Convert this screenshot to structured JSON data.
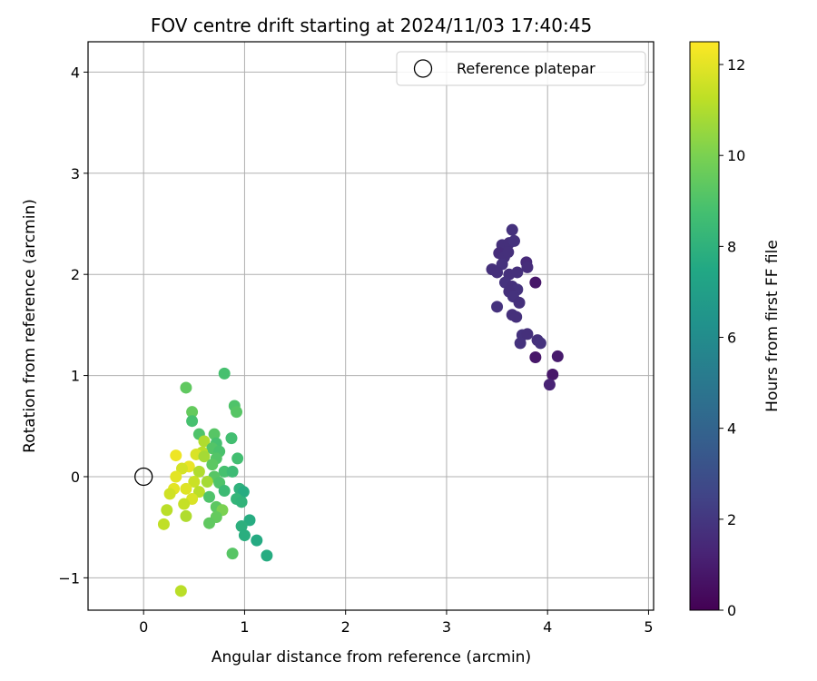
{
  "chart_data": {
    "type": "scatter",
    "title": "FOV centre drift starting at 2024/11/03 17:40:45",
    "xlabel": "Angular distance from reference (arcmin)",
    "ylabel": "Rotation from reference (arcmin)",
    "xlim": [
      -0.55,
      5.05
    ],
    "ylim": [
      -1.32,
      4.3
    ],
    "xticks": [
      0,
      1,
      2,
      3,
      4,
      5
    ],
    "xtick_labels": [
      "0",
      "1",
      "2",
      "3",
      "4",
      "5"
    ],
    "yticks": [
      -1,
      0,
      1,
      2,
      3,
      4
    ],
    "ytick_labels": [
      "−1",
      "0",
      "1",
      "2",
      "3",
      "4"
    ],
    "grid": true,
    "legend": {
      "placement": "top-right",
      "entries": [
        "Reference platepar"
      ]
    },
    "reference_point": {
      "x": 0,
      "y": 0,
      "marker": "open-circle"
    },
    "colorbar": {
      "label": "Hours from first FF file",
      "range": [
        0,
        12.5
      ],
      "ticks": [
        0,
        2,
        4,
        6,
        8,
        10,
        12
      ],
      "tick_labels": [
        "0",
        "2",
        "4",
        "6",
        "8",
        "10",
        "12"
      ],
      "colormap": "viridis"
    },
    "points": [
      {
        "x": 3.65,
        "y": 2.44,
        "h": 1.8
      },
      {
        "x": 3.55,
        "y": 2.29,
        "h": 1.7
      },
      {
        "x": 3.62,
        "y": 2.31,
        "h": 1.7
      },
      {
        "x": 3.67,
        "y": 2.33,
        "h": 1.8
      },
      {
        "x": 3.52,
        "y": 2.21,
        "h": 1.6
      },
      {
        "x": 3.57,
        "y": 2.17,
        "h": 1.7
      },
      {
        "x": 3.61,
        "y": 2.22,
        "h": 1.7
      },
      {
        "x": 3.55,
        "y": 2.1,
        "h": 1.8
      },
      {
        "x": 3.79,
        "y": 2.12,
        "h": 1.5
      },
      {
        "x": 3.8,
        "y": 2.07,
        "h": 1.6
      },
      {
        "x": 3.45,
        "y": 2.05,
        "h": 1.7
      },
      {
        "x": 3.5,
        "y": 2.02,
        "h": 1.7
      },
      {
        "x": 3.62,
        "y": 2.0,
        "h": 1.7
      },
      {
        "x": 3.7,
        "y": 2.02,
        "h": 1.7
      },
      {
        "x": 3.58,
        "y": 1.92,
        "h": 1.8
      },
      {
        "x": 3.65,
        "y": 1.88,
        "h": 1.7
      },
      {
        "x": 3.7,
        "y": 1.85,
        "h": 1.8
      },
      {
        "x": 3.62,
        "y": 1.83,
        "h": 1.7
      },
      {
        "x": 3.66,
        "y": 1.78,
        "h": 1.8
      },
      {
        "x": 3.72,
        "y": 1.72,
        "h": 1.7
      },
      {
        "x": 3.88,
        "y": 1.92,
        "h": 0.8
      },
      {
        "x": 3.5,
        "y": 1.68,
        "h": 1.8
      },
      {
        "x": 3.65,
        "y": 1.6,
        "h": 1.7
      },
      {
        "x": 3.69,
        "y": 1.58,
        "h": 1.7
      },
      {
        "x": 3.75,
        "y": 1.4,
        "h": 1.8
      },
      {
        "x": 3.8,
        "y": 1.41,
        "h": 1.7
      },
      {
        "x": 3.73,
        "y": 1.32,
        "h": 1.8
      },
      {
        "x": 3.9,
        "y": 1.35,
        "h": 1.7
      },
      {
        "x": 3.93,
        "y": 1.32,
        "h": 1.8
      },
      {
        "x": 3.88,
        "y": 1.18,
        "h": 0.8
      },
      {
        "x": 4.1,
        "y": 1.19,
        "h": 0.9
      },
      {
        "x": 4.05,
        "y": 1.01,
        "h": 0.8
      },
      {
        "x": 4.02,
        "y": 0.91,
        "h": 1.2
      },
      {
        "x": 0.8,
        "y": 1.02,
        "h": 8.8
      },
      {
        "x": 0.42,
        "y": 0.88,
        "h": 9.4
      },
      {
        "x": 0.9,
        "y": 0.7,
        "h": 9.0
      },
      {
        "x": 0.92,
        "y": 0.64,
        "h": 9.2
      },
      {
        "x": 0.48,
        "y": 0.64,
        "h": 9.5
      },
      {
        "x": 0.48,
        "y": 0.55,
        "h": 8.8
      },
      {
        "x": 0.55,
        "y": 0.42,
        "h": 9.0
      },
      {
        "x": 0.7,
        "y": 0.42,
        "h": 9.2
      },
      {
        "x": 0.6,
        "y": 0.35,
        "h": 11.0
      },
      {
        "x": 0.72,
        "y": 0.33,
        "h": 8.8
      },
      {
        "x": 0.87,
        "y": 0.38,
        "h": 8.7
      },
      {
        "x": 0.68,
        "y": 0.28,
        "h": 9.1
      },
      {
        "x": 0.75,
        "y": 0.25,
        "h": 8.9
      },
      {
        "x": 0.58,
        "y": 0.24,
        "h": 11.2
      },
      {
        "x": 0.52,
        "y": 0.22,
        "h": 11.8
      },
      {
        "x": 0.32,
        "y": 0.21,
        "h": 12.2
      },
      {
        "x": 0.6,
        "y": 0.2,
        "h": 10.8
      },
      {
        "x": 0.72,
        "y": 0.18,
        "h": 9.1
      },
      {
        "x": 0.93,
        "y": 0.18,
        "h": 8.7
      },
      {
        "x": 0.68,
        "y": 0.12,
        "h": 9.3
      },
      {
        "x": 0.45,
        "y": 0.1,
        "h": 12.1
      },
      {
        "x": 0.38,
        "y": 0.08,
        "h": 11.7
      },
      {
        "x": 0.55,
        "y": 0.05,
        "h": 11.0
      },
      {
        "x": 0.8,
        "y": 0.05,
        "h": 8.8
      },
      {
        "x": 0.88,
        "y": 0.05,
        "h": 8.5
      },
      {
        "x": 0.7,
        "y": 0.0,
        "h": 9.2
      },
      {
        "x": 0.32,
        "y": 0.0,
        "h": 12.0
      },
      {
        "x": 0.5,
        "y": -0.05,
        "h": 11.5
      },
      {
        "x": 0.63,
        "y": -0.05,
        "h": 10.8
      },
      {
        "x": 0.75,
        "y": -0.06,
        "h": 9.0
      },
      {
        "x": 0.42,
        "y": -0.12,
        "h": 11.9
      },
      {
        "x": 0.3,
        "y": -0.12,
        "h": 12.0
      },
      {
        "x": 0.26,
        "y": -0.17,
        "h": 11.6
      },
      {
        "x": 0.55,
        "y": -0.15,
        "h": 11.2
      },
      {
        "x": 0.8,
        "y": -0.14,
        "h": 8.5
      },
      {
        "x": 0.95,
        "y": -0.12,
        "h": 8.0
      },
      {
        "x": 0.99,
        "y": -0.15,
        "h": 7.7
      },
      {
        "x": 0.65,
        "y": -0.2,
        "h": 9.0
      },
      {
        "x": 0.48,
        "y": -0.22,
        "h": 11.8
      },
      {
        "x": 0.4,
        "y": -0.27,
        "h": 11.4
      },
      {
        "x": 0.92,
        "y": -0.22,
        "h": 8.2
      },
      {
        "x": 0.97,
        "y": -0.25,
        "h": 8.1
      },
      {
        "x": 0.72,
        "y": -0.3,
        "h": 9.3
      },
      {
        "x": 0.23,
        "y": -0.33,
        "h": 11.2
      },
      {
        "x": 0.78,
        "y": -0.33,
        "h": 10.0
      },
      {
        "x": 0.42,
        "y": -0.39,
        "h": 11.0
      },
      {
        "x": 0.72,
        "y": -0.4,
        "h": 9.5
      },
      {
        "x": 1.05,
        "y": -0.43,
        "h": 7.7
      },
      {
        "x": 0.65,
        "y": -0.46,
        "h": 9.4
      },
      {
        "x": 0.2,
        "y": -0.47,
        "h": 11.3
      },
      {
        "x": 0.97,
        "y": -0.49,
        "h": 7.9
      },
      {
        "x": 1.0,
        "y": -0.58,
        "h": 7.8
      },
      {
        "x": 1.12,
        "y": -0.63,
        "h": 7.6
      },
      {
        "x": 0.88,
        "y": -0.76,
        "h": 9.2
      },
      {
        "x": 1.22,
        "y": -0.78,
        "h": 7.7
      },
      {
        "x": 0.37,
        "y": -1.13,
        "h": 11.2
      }
    ]
  }
}
